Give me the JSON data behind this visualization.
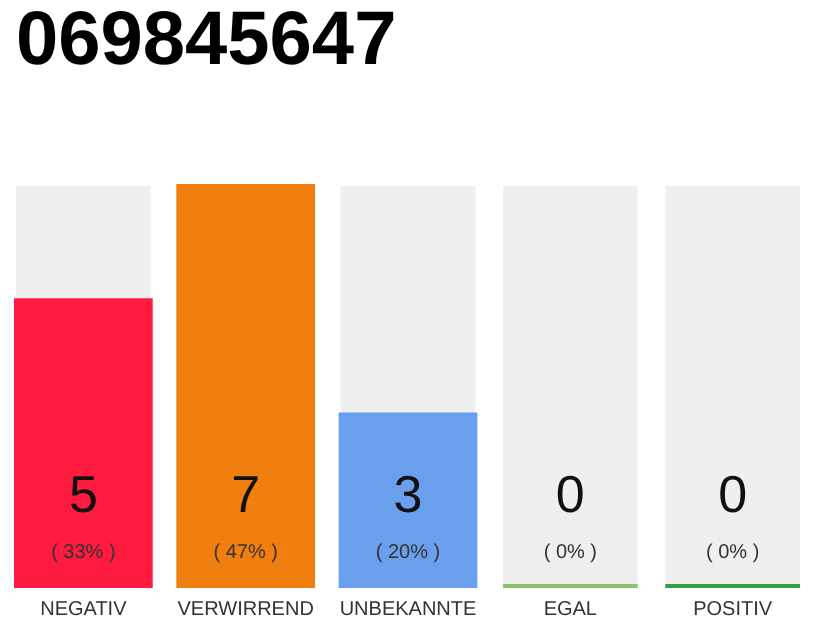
{
  "chart_data": {
    "type": "bar",
    "title": "069845647",
    "categories": [
      "NEGATIV",
      "VERWIRREND",
      "UNBEKANNTE",
      "EGAL",
      "POSITIV"
    ],
    "values": [
      5,
      7,
      3,
      0,
      0
    ],
    "colors": [
      "#ff1a40",
      "#f07f10",
      "#6a9fee",
      "#8bc36a",
      "#2ea04a"
    ],
    "ylim": [
      0,
      7
    ],
    "data_labels": true,
    "tick_labels": "x",
    "legend": false,
    "annotations": [
      "( 33% )",
      "( 47% )",
      "( 20% )",
      "( 0% )",
      "( 0% )"
    ]
  }
}
